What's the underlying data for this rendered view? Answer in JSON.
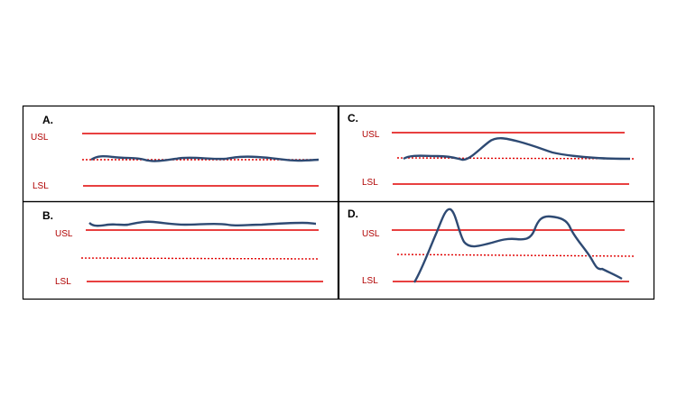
{
  "colors": {
    "limit_line": "#e00000",
    "limit_text": "#b00000",
    "process_line": "#2e4a73",
    "frame": "#000000"
  },
  "labels": {
    "usl": "USL",
    "lsl": "LSL"
  },
  "panels": [
    {
      "letter": "A.",
      "description": "process stays between limits near center"
    },
    {
      "letter": "C.",
      "description": "process with a drift bump, within limits"
    },
    {
      "letter": "B.",
      "description": "process running above USL"
    },
    {
      "letter": "D.",
      "description": "process swinging beyond both limits"
    }
  ]
}
